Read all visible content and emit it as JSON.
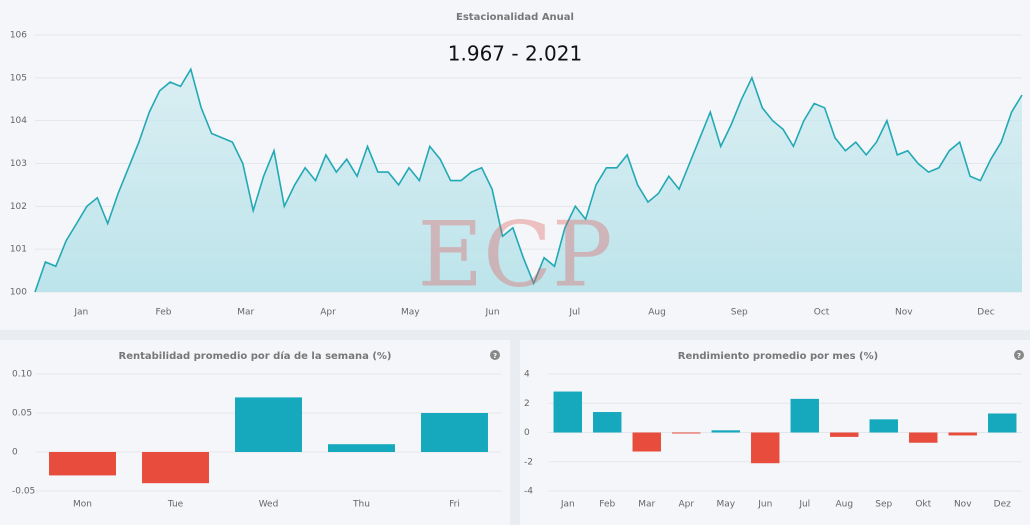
{
  "watermark": "ECP",
  "chart_data": [
    {
      "type": "line",
      "title": "Estacionalidad Anual",
      "annotation": "1.967 - 2.021",
      "color": "#23a9b5",
      "grid": true,
      "ylim": [
        100,
        106
      ],
      "yticks": [
        100,
        101,
        102,
        103,
        104,
        105,
        106
      ],
      "categories": [
        null,
        null,
        null,
        null,
        "Jan",
        null,
        null,
        null,
        null,
        null,
        null,
        null,
        "Feb",
        null,
        null,
        null,
        null,
        null,
        null,
        null,
        "Mar",
        null,
        null,
        null,
        null,
        null,
        null,
        null,
        "Apr",
        null,
        null,
        null,
        null,
        null,
        null,
        null,
        "May",
        null,
        null,
        null,
        null,
        null,
        null,
        null,
        "Jun",
        null,
        null,
        null,
        null,
        null,
        null,
        null,
        "Jul",
        null,
        null,
        null,
        null,
        null,
        null,
        null,
        "Aug",
        null,
        null,
        null,
        null,
        null,
        null,
        null,
        "Sep",
        null,
        null,
        null,
        null,
        null,
        null,
        null,
        "Oct",
        null,
        null,
        null,
        null,
        null,
        null,
        null,
        "Nov",
        null,
        null,
        null,
        null,
        null,
        null,
        null,
        "Dec",
        null,
        null,
        null
      ],
      "values": [
        100.0,
        100.7,
        100.6,
        101.2,
        101.6,
        102.0,
        102.2,
        101.6,
        102.3,
        102.9,
        103.5,
        104.2,
        104.7,
        104.9,
        104.8,
        105.2,
        104.3,
        103.7,
        103.6,
        103.5,
        103.0,
        101.9,
        102.7,
        103.3,
        102.0,
        102.5,
        102.9,
        102.6,
        103.2,
        102.8,
        103.1,
        102.7,
        103.4,
        102.8,
        102.8,
        102.5,
        102.9,
        102.6,
        103.4,
        103.1,
        102.6,
        102.6,
        102.8,
        102.9,
        102.4,
        101.3,
        101.5,
        100.8,
        100.2,
        100.8,
        100.6,
        101.5,
        102.0,
        101.7,
        102.5,
        102.9,
        102.9,
        103.2,
        102.5,
        102.1,
        102.3,
        102.7,
        102.4,
        103.0,
        103.6,
        104.2,
        103.4,
        103.9,
        104.5,
        105.0,
        104.3,
        104.0,
        103.8,
        103.4,
        104.0,
        104.4,
        104.3,
        103.6,
        103.3,
        103.5,
        103.2,
        103.5,
        104.0,
        103.2,
        103.3,
        103.0,
        102.8,
        102.9,
        103.3,
        103.5,
        102.7,
        102.6,
        103.1,
        103.5,
        104.2,
        104.6
      ]
    },
    {
      "type": "bar",
      "title": "Rentabilidad promedio por día de la semana (%)",
      "grid": true,
      "color_positive": "#16a9bd",
      "color_negative": "#e74c3c",
      "ylim": [
        -0.05,
        0.1
      ],
      "yticks": [
        -0.05,
        0,
        0.05,
        {
          "value": 0.1,
          "label": "0.10"
        }
      ],
      "categories": [
        "Mon",
        "Tue",
        "Wed",
        "Thu",
        "Fri"
      ],
      "values": [
        -0.03,
        -0.04,
        0.07,
        0.01,
        0.05
      ]
    },
    {
      "type": "bar",
      "title": "Rendimiento promedio por mes (%)",
      "grid": true,
      "color_positive": "#16a9bd",
      "color_negative": "#e74c3c",
      "ylim": [
        -4,
        4
      ],
      "yticks": [
        -4,
        -2,
        0,
        2,
        4
      ],
      "categories": [
        "Jan",
        "Feb",
        "Mar",
        "Apr",
        "May",
        "Jun",
        "Jul",
        "Aug",
        "Sep",
        "Okt",
        "Nov",
        "Dez"
      ],
      "values": [
        2.8,
        1.4,
        -1.3,
        -0.05,
        0.15,
        -2.1,
        2.3,
        -0.3,
        0.9,
        -0.7,
        -0.2,
        1.3
      ]
    }
  ]
}
